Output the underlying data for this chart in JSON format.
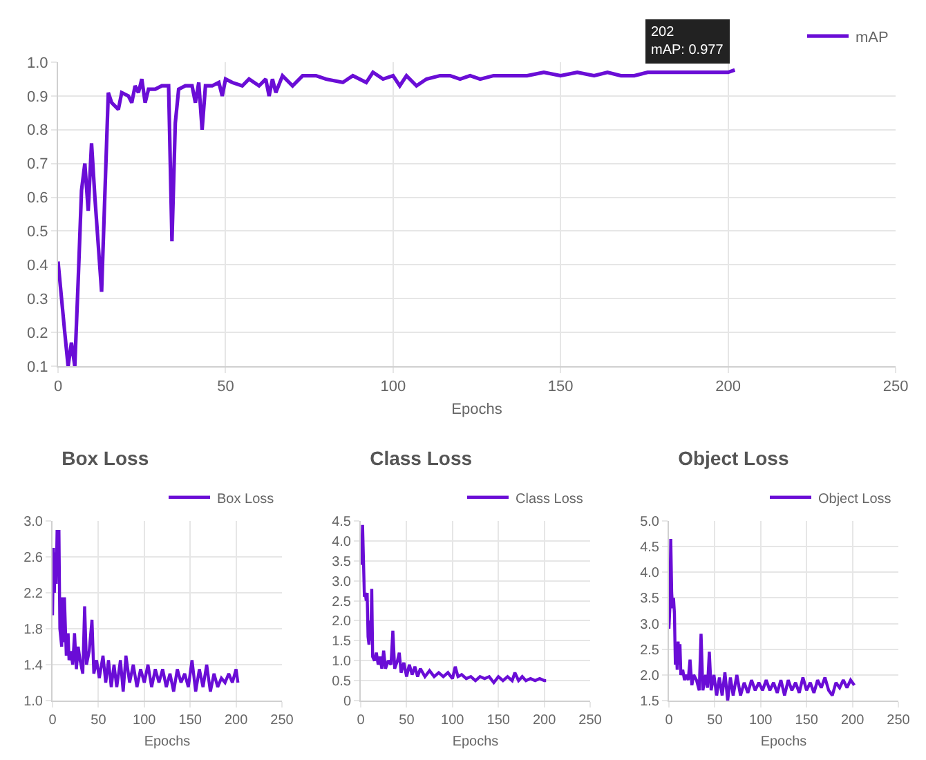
{
  "chart_data": [
    {
      "type": "line",
      "xlabel": "Epochs",
      "xlim": [
        0,
        250
      ],
      "xticks": [
        0,
        50,
        100,
        150,
        200,
        250
      ],
      "ylim": [
        0.1,
        1.0
      ],
      "yticks": [
        {
          "value": 0.1,
          "label": "0.1"
        },
        {
          "value": 0.2,
          "label": "0.2"
        },
        {
          "value": 0.3,
          "label": "0.3"
        },
        {
          "value": 0.4,
          "label": "0.4"
        },
        {
          "value": 0.5,
          "label": "0.5"
        },
        {
          "value": 0.6,
          "label": "0.6"
        },
        {
          "value": 0.7,
          "label": "0.7"
        },
        {
          "value": 0.8,
          "label": "0.8"
        },
        {
          "value": 0.9,
          "label": "0.9"
        },
        {
          "value": 1.0,
          "label": "1.0"
        }
      ],
      "grid": true,
      "legend": "top right",
      "annotations": [
        {
          "text": "202\nmAP: 0.977",
          "x": 202,
          "y": 0.977
        }
      ],
      "x": [
        0,
        2,
        3,
        4,
        5,
        6,
        7,
        8,
        9,
        10,
        11,
        13,
        15,
        16,
        18,
        19,
        21,
        22,
        23,
        24,
        25,
        26,
        27,
        29,
        31,
        33,
        34,
        35,
        36,
        38,
        40,
        41,
        42,
        43,
        44,
        46,
        48,
        49,
        50,
        52,
        55,
        57,
        60,
        62,
        63,
        64,
        65,
        67,
        70,
        73,
        77,
        80,
        85,
        88,
        92,
        94,
        97,
        100,
        102,
        104,
        107,
        110,
        114,
        117,
        120,
        123,
        126,
        130,
        135,
        140,
        145,
        150,
        155,
        160,
        164,
        168,
        172,
        176,
        180,
        185,
        190,
        195,
        200,
        202
      ],
      "series": [
        {
          "name": "mAP",
          "color": "#6a0dd6",
          "values": [
            0.41,
            0.2,
            0.1,
            0.17,
            0.1,
            0.35,
            0.62,
            0.7,
            0.56,
            0.76,
            0.6,
            0.32,
            0.91,
            0.88,
            0.86,
            0.91,
            0.9,
            0.88,
            0.93,
            0.91,
            0.95,
            0.88,
            0.92,
            0.92,
            0.93,
            0.93,
            0.47,
            0.82,
            0.92,
            0.93,
            0.93,
            0.88,
            0.94,
            0.8,
            0.93,
            0.93,
            0.94,
            0.9,
            0.95,
            0.94,
            0.93,
            0.95,
            0.93,
            0.95,
            0.9,
            0.95,
            0.91,
            0.96,
            0.93,
            0.96,
            0.96,
            0.95,
            0.94,
            0.96,
            0.94,
            0.97,
            0.95,
            0.96,
            0.93,
            0.96,
            0.93,
            0.95,
            0.96,
            0.96,
            0.95,
            0.96,
            0.95,
            0.96,
            0.96,
            0.96,
            0.97,
            0.96,
            0.97,
            0.96,
            0.97,
            0.96,
            0.96,
            0.97,
            0.97,
            0.97,
            0.97,
            0.97,
            0.97,
            0.977
          ]
        }
      ]
    },
    {
      "type": "line",
      "title": "Box Loss",
      "xlabel": "Epochs",
      "xlim": [
        0,
        250
      ],
      "xticks": [
        0,
        50,
        100,
        150,
        200,
        250
      ],
      "ylim": [
        1.0,
        3.0
      ],
      "yticks": [
        {
          "value": 1.0,
          "label": "1.0"
        },
        1.4,
        1.8,
        2.2,
        2.6,
        {
          "value": 3.0,
          "label": "3.0"
        }
      ],
      "grid": true,
      "legend": "top right",
      "x": [
        0,
        1,
        2,
        3,
        4,
        5,
        6,
        7,
        8,
        10,
        11,
        12,
        13,
        15,
        17,
        18,
        20,
        22,
        24,
        26,
        28,
        30,
        33,
        35,
        37,
        40,
        43,
        45,
        48,
        51,
        55,
        58,
        61,
        64,
        67,
        70,
        74,
        77,
        80,
        84,
        88,
        92,
        96,
        100,
        104,
        108,
        112,
        116,
        120,
        124,
        128,
        132,
        136,
        140,
        144,
        148,
        152,
        156,
        160,
        164,
        168,
        172,
        176,
        180,
        184,
        188,
        192,
        196,
        200,
        202
      ],
      "series": [
        {
          "name": "Box Loss",
          "color": "#6a0dd6",
          "values": [
            1.95,
            2.7,
            2.2,
            2.65,
            2.3,
            2.9,
            2.4,
            2.9,
            1.8,
            1.6,
            2.15,
            1.65,
            2.15,
            1.5,
            1.75,
            1.45,
            1.55,
            1.4,
            1.75,
            1.35,
            1.6,
            1.45,
            1.3,
            2.05,
            1.4,
            1.55,
            1.9,
            1.3,
            1.45,
            1.25,
            1.5,
            1.2,
            1.45,
            1.15,
            1.4,
            1.15,
            1.45,
            1.1,
            1.5,
            1.2,
            1.4,
            1.15,
            1.35,
            1.2,
            1.4,
            1.15,
            1.35,
            1.2,
            1.35,
            1.15,
            1.3,
            1.1,
            1.35,
            1.2,
            1.3,
            1.15,
            1.45,
            1.1,
            1.35,
            1.15,
            1.4,
            1.1,
            1.3,
            1.15,
            1.25,
            1.2,
            1.3,
            1.2,
            1.35,
            1.2
          ]
        }
      ]
    },
    {
      "type": "line",
      "title": "Class Loss",
      "xlabel": "Epochs",
      "xlim": [
        0,
        250
      ],
      "xticks": [
        0,
        50,
        100,
        150,
        200,
        250
      ],
      "ylim": [
        0,
        4.5
      ],
      "yticks": [
        0,
        0.5,
        {
          "value": 1.0,
          "label": "1.0"
        },
        1.5,
        {
          "value": 2.0,
          "label": "2.0"
        },
        2.5,
        {
          "value": 3.0,
          "label": "3.0"
        },
        3.5,
        {
          "value": 4.0,
          "label": "4.0"
        },
        4.5
      ],
      "grid": true,
      "legend": "top right",
      "x": [
        0,
        1,
        2,
        3,
        4,
        5,
        6,
        7,
        8,
        9,
        10,
        11,
        12,
        13,
        15,
        17,
        19,
        21,
        23,
        25,
        27,
        30,
        33,
        35,
        37,
        40,
        42,
        44,
        47,
        50,
        53,
        56,
        59,
        62,
        65,
        70,
        75,
        80,
        85,
        90,
        95,
        100,
        103,
        106,
        110,
        115,
        120,
        125,
        130,
        135,
        140,
        145,
        150,
        155,
        160,
        165,
        168,
        172,
        176,
        180,
        185,
        190,
        195,
        200,
        202
      ],
      "series": [
        {
          "name": "Class Loss",
          "color": "#6a0dd6",
          "values": [
            3.4,
            3.6,
            4.4,
            3.5,
            2.6,
            2.7,
            2.5,
            2.7,
            1.6,
            1.4,
            2.0,
            1.5,
            2.8,
            1.1,
            1.0,
            1.2,
            0.9,
            1.1,
            0.8,
            1.25,
            0.8,
            1.0,
            0.9,
            1.75,
            0.8,
            1.0,
            1.2,
            0.7,
            0.95,
            0.6,
            0.9,
            0.65,
            0.85,
            0.6,
            0.8,
            0.6,
            0.75,
            0.6,
            0.7,
            0.6,
            0.7,
            0.55,
            0.85,
            0.6,
            0.65,
            0.55,
            0.6,
            0.5,
            0.6,
            0.55,
            0.6,
            0.45,
            0.6,
            0.5,
            0.6,
            0.5,
            0.7,
            0.5,
            0.6,
            0.5,
            0.55,
            0.5,
            0.55,
            0.5,
            0.5
          ]
        }
      ]
    },
    {
      "type": "line",
      "title": "Object Loss",
      "xlabel": "Epochs",
      "xlim": [
        0,
        250
      ],
      "xticks": [
        0,
        50,
        100,
        150,
        200,
        250
      ],
      "ylim": [
        1.5,
        5.0
      ],
      "yticks": [
        1.5,
        {
          "value": 2.0,
          "label": "2.0"
        },
        2.5,
        {
          "value": 3.0,
          "label": "3.0"
        },
        3.5,
        {
          "value": 4.0,
          "label": "4.0"
        },
        4.5,
        {
          "value": 5.0,
          "label": "5.0"
        }
      ],
      "grid": true,
      "legend": "top right",
      "x": [
        0,
        1,
        2,
        3,
        4,
        5,
        6,
        7,
        8,
        9,
        10,
        11,
        12,
        13,
        15,
        17,
        19,
        21,
        23,
        25,
        27,
        30,
        33,
        35,
        37,
        40,
        42,
        44,
        46,
        49,
        52,
        55,
        58,
        61,
        64,
        67,
        70,
        74,
        78,
        82,
        86,
        90,
        94,
        98,
        102,
        106,
        110,
        114,
        118,
        122,
        126,
        130,
        134,
        138,
        142,
        146,
        150,
        154,
        158,
        162,
        166,
        170,
        174,
        178,
        182,
        186,
        190,
        194,
        198,
        202
      ],
      "series": [
        {
          "name": "Object Loss",
          "color": "#6a0dd6",
          "values": [
            2.9,
            3.3,
            4.65,
            3.6,
            3.3,
            3.5,
            3.2,
            2.2,
            2.5,
            2.1,
            2.65,
            2.2,
            2.6,
            2.0,
            2.1,
            1.9,
            2.0,
            1.9,
            2.3,
            1.8,
            2.0,
            1.9,
            1.7,
            2.8,
            1.7,
            2.0,
            1.75,
            2.45,
            1.7,
            2.0,
            1.6,
            1.95,
            1.6,
            2.05,
            1.5,
            1.95,
            1.6,
            2.0,
            1.6,
            1.85,
            1.65,
            1.9,
            1.7,
            1.85,
            1.7,
            1.9,
            1.7,
            1.85,
            1.65,
            1.9,
            1.6,
            1.9,
            1.7,
            1.85,
            1.65,
            1.95,
            1.7,
            1.85,
            1.65,
            1.9,
            1.75,
            1.95,
            1.7,
            1.6,
            1.85,
            1.75,
            1.9,
            1.75,
            1.9,
            1.8
          ]
        }
      ]
    }
  ]
}
